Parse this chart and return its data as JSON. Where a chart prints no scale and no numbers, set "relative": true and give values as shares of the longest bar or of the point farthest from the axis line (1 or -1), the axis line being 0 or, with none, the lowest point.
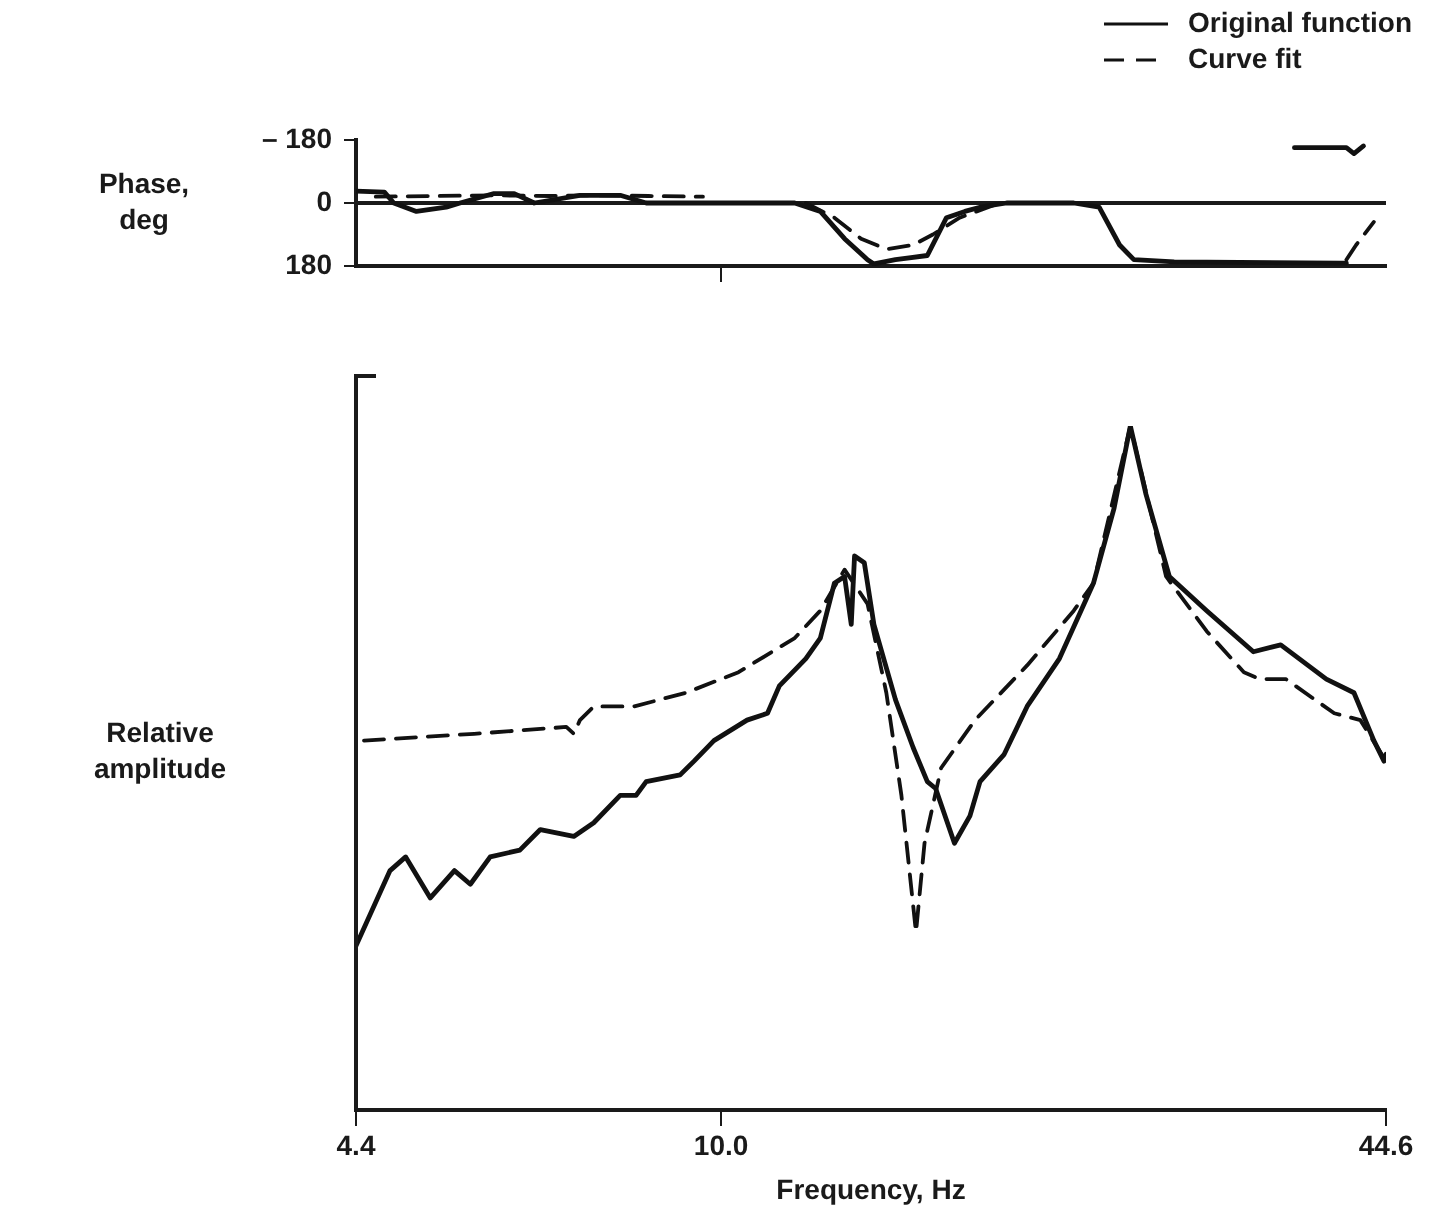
{
  "chart_data": [
    {
      "type": "line",
      "ylabel": "Phase, deg",
      "log": "x",
      "xlim": [
        4.4,
        44.6
      ],
      "xticks": [
        {
          "value": 10,
          "label": null
        }
      ],
      "ylim": [
        180,
        -180
      ],
      "yticks": [
        {
          "value": -180,
          "label": "– 180"
        },
        0,
        180
      ],
      "tick_labels": "y",
      "legend": "top right",
      "ref_lines": [
        {
          "axis": "y",
          "value": 0
        }
      ],
      "series": [
        {
          "name": "Original function",
          "color": "#111111",
          "line_style": "solid",
          "x": [
            4.4,
            4.69,
            4.79,
            5.04,
            5.39,
            5.56,
            6.0,
            6.28,
            6.57,
            7.28,
            7.97,
            8.45,
            11.8,
            12.5,
            13.2,
            13.9,
            14.1,
            14.8,
            15.9,
            16.6,
            17.3,
            17.9,
            19.0,
            22.1,
            23.4,
            24.5,
            25.3,
            27.7,
            40.2,
            40.8
          ],
          "values": [
            -34,
            -31,
            0,
            24,
            12,
            0,
            -27,
            -27,
            0,
            -22,
            -22,
            0,
            0,
            24,
            102,
            162,
            174,
            162,
            150,
            42,
            24,
            12,
            0,
            0,
            12,
            120,
            162,
            168,
            172,
            172
          ]
        },
        {
          "color": "#111111",
          "line_style": "solid",
          "x": [
            36.3,
            40.8,
            41.5,
            42.4
          ],
          "values": [
            -158,
            -158,
            -141,
            -163
          ]
        },
        {
          "name": "Curve fit",
          "color": "#111111",
          "line_style": "dashed",
          "x": [
            12.1,
            12.9,
            13.7,
            14.5,
            15.4,
            16.1,
            17.1,
            18.7
          ],
          "values": [
            0,
            42,
            102,
            132,
            120,
            90,
            42,
            0
          ]
        },
        {
          "color": "#111111",
          "line_style": "dashed",
          "x": [
            4.6,
            5.2,
            6.0,
            6.8,
            7.6,
            8.5,
            9.6
          ],
          "values": [
            -18,
            -20,
            -22,
            -20,
            -22,
            -20,
            -18
          ]
        },
        {
          "color": "#111111",
          "line_style": "dashed",
          "x": [
            40.8,
            41.7,
            43.4
          ],
          "values": [
            162,
            120,
            54
          ]
        }
      ]
    },
    {
      "type": "line",
      "relative": true,
      "xlabel": "Frequency, Hz",
      "ylabel": "Relative amplitude",
      "log": "x",
      "xlim": [
        4.4,
        44.6
      ],
      "xticks": [
        4.4,
        {
          "value": 10,
          "label": "10.0"
        },
        44.6
      ],
      "tick_labels": "x",
      "series": [
        {
          "color": "#111111",
          "line_style": "solid",
          "x": [
            4.4,
            4.75,
            4.92,
            5.2,
            5.49,
            5.69,
            5.95,
            6.36,
            6.66,
            7.18,
            7.51,
            7.97,
            8.26,
            8.45,
            9.12,
            9.41,
            9.84,
            10.6,
            11.1,
            11.4,
            12.1,
            12.5,
            12.9,
            13.2,
            13.4,
            13.5,
            13.8,
            14.1,
            14.8,
            15.4,
            15.9,
            16.2,
            16.9,
            17.5,
            17.9,
            18.9,
            19.9,
            21.4,
            23.1,
            24.2,
            25.1,
            26.0,
            27.4,
            29.8,
            33.1,
            35.2,
            39.0,
            41.5,
            43.4,
            44.4,
            44.6
          ],
          "values": [
            0.24,
            0.35,
            0.37,
            0.31,
            0.35,
            0.33,
            0.37,
            0.38,
            0.41,
            0.4,
            0.42,
            0.46,
            0.46,
            0.48,
            0.49,
            0.51,
            0.54,
            0.57,
            0.58,
            0.62,
            0.66,
            0.69,
            0.77,
            0.78,
            0.71,
            0.81,
            0.8,
            0.71,
            0.6,
            0.53,
            0.48,
            0.47,
            0.39,
            0.43,
            0.48,
            0.52,
            0.59,
            0.66,
            0.77,
            0.88,
            1,
            0.9,
            0.78,
            0.73,
            0.67,
            0.68,
            0.63,
            0.61,
            0.54,
            0.51,
            0.52
          ]
        },
        {
          "color": "#111111",
          "line_style": "dashed",
          "x": [
            4.48,
            5.74,
            7.06,
            7.18,
            7.28,
            7.51,
            8.22,
            9.24,
            10.4,
            11.8,
            12.5,
            13.2,
            13.9,
            14.5,
            15.0,
            15.5,
            15.8,
            16.4,
            17.7,
            19.9,
            22.1,
            23.1,
            25.1,
            27.2,
            29.8,
            32.4,
            33.6,
            35.6,
            39.7,
            42.1,
            44.6
          ],
          "values": [
            0.54,
            0.55,
            0.56,
            0.55,
            0.57,
            0.59,
            0.59,
            0.61,
            0.64,
            0.69,
            0.73,
            0.79,
            0.74,
            0.61,
            0.46,
            0.26,
            0.39,
            0.5,
            0.57,
            0.65,
            0.73,
            0.77,
            1,
            0.78,
            0.7,
            0.64,
            0.63,
            0.63,
            0.58,
            0.57,
            0.51
          ]
        }
      ]
    }
  ]
}
